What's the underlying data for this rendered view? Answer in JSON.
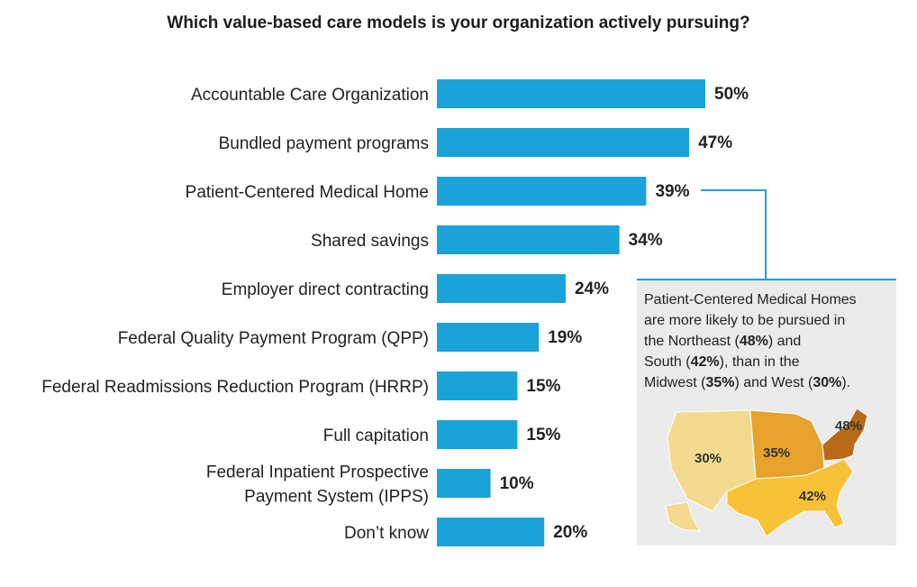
{
  "title": "Which value-based care models is your organization actively pursuing?",
  "chart_data": {
    "type": "bar",
    "orientation": "horizontal",
    "title": "Which value-based care models is your organization actively pursuing?",
    "categories": [
      [
        "Accountable Care Organization"
      ],
      [
        "Bundled payment programs"
      ],
      [
        "Patient-Centered Medical Home"
      ],
      [
        "Shared savings"
      ],
      [
        "Employer direct contracting"
      ],
      [
        "Federal Quality Payment Program (QPP)"
      ],
      [
        "Federal Readmissions Reduction Program (HRRP)"
      ],
      [
        "Full capitation"
      ],
      [
        "Federal Inpatient Prospective",
        "Payment System (IPPS)"
      ],
      [
        "Don’t know"
      ]
    ],
    "values": [
      50,
      47,
      39,
      34,
      24,
      19,
      15,
      15,
      10,
      20
    ],
    "value_labels": [
      "50%",
      "47%",
      "39%",
      "34%",
      "24%",
      "19%",
      "15%",
      "15%",
      "10%",
      "20%"
    ],
    "xlim": [
      0,
      100
    ],
    "bar_color": "#1aa3d9",
    "highlight_index": 2
  },
  "callout": {
    "line1": "Patient-Centered Medical Homes",
    "line2": "are more likely to be pursued in",
    "line3_a": "the Northeast (",
    "line3_b": "48%",
    "line3_c": ") and",
    "line4_a": "South (",
    "line4_b": "42%",
    "line4_c": "), than in the",
    "line5_a": "Midwest (",
    "line5_b": "35%",
    "line5_c": ") and West (",
    "line5_d": "30%",
    "line5_e": ").",
    "border_color": "#1aa3d9"
  },
  "map": {
    "regions": [
      {
        "name": "West",
        "label": "30%",
        "color": "#f3da8f"
      },
      {
        "name": "Midwest",
        "label": "35%",
        "color": "#e6a22a"
      },
      {
        "name": "South",
        "label": "42%",
        "color": "#f7c238"
      },
      {
        "name": "Northeast",
        "label": "48%",
        "color": "#b96a17"
      }
    ]
  }
}
